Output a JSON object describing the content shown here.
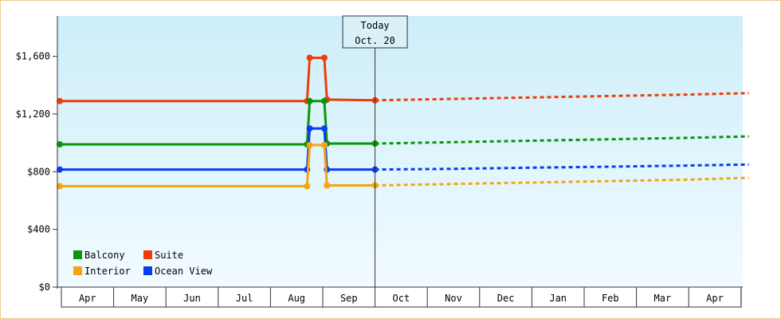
{
  "chart_data": {
    "type": "line",
    "y_ticks": [
      "$0",
      "$400",
      "$800",
      "$1,200",
      "$1,600"
    ],
    "y_tick_values": [
      0,
      400,
      800,
      1200,
      1600
    ],
    "ylim": [
      0,
      1880
    ],
    "months": [
      "Apr",
      "May",
      "Jun",
      "Jul",
      "Aug",
      "Sep",
      "Oct",
      "Nov",
      "Dec",
      "Jan",
      "Feb",
      "Mar",
      "Apr"
    ],
    "x_range_months": [
      0,
      13.15
    ],
    "today_marker": {
      "line1": "Today",
      "line2": "Oct. 20",
      "x": 6.0
    },
    "grid": false,
    "legend": "bottom-left",
    "colors": {
      "Balcony": "#0a960a",
      "Suite": "#f03c0a",
      "Interior": "#f5a50f",
      "Ocean View": "#0a3cf0"
    },
    "series": [
      {
        "name": "Suite",
        "actual": [
          [
            -0.03,
            1290
          ],
          [
            4.7,
            1290
          ],
          [
            4.75,
            1590
          ],
          [
            5.03,
            1590
          ],
          [
            5.08,
            1300
          ],
          [
            6.0,
            1295
          ]
        ],
        "forecast": [
          [
            6.0,
            1295
          ],
          [
            7.5,
            1305
          ],
          [
            9.0,
            1315
          ],
          [
            10.5,
            1325
          ],
          [
            12.0,
            1335
          ],
          [
            13.15,
            1345
          ]
        ]
      },
      {
        "name": "Balcony",
        "actual": [
          [
            -0.03,
            990
          ],
          [
            4.7,
            990
          ],
          [
            4.75,
            1290
          ],
          [
            5.03,
            1290
          ],
          [
            5.08,
            995
          ],
          [
            6.0,
            995
          ]
        ],
        "forecast": [
          [
            6.0,
            995
          ],
          [
            7.5,
            1005
          ],
          [
            9.0,
            1015
          ],
          [
            10.5,
            1025
          ],
          [
            12.0,
            1035
          ],
          [
            13.15,
            1045
          ]
        ]
      },
      {
        "name": "Ocean View",
        "actual": [
          [
            -0.03,
            815
          ],
          [
            4.7,
            815
          ],
          [
            4.75,
            1100
          ],
          [
            5.03,
            1100
          ],
          [
            5.08,
            815
          ],
          [
            6.0,
            815
          ]
        ],
        "forecast": [
          [
            6.0,
            815
          ],
          [
            7.5,
            820
          ],
          [
            9.0,
            828
          ],
          [
            10.5,
            835
          ],
          [
            12.0,
            843
          ],
          [
            13.15,
            850
          ]
        ]
      },
      {
        "name": "Interior",
        "actual": [
          [
            -0.03,
            700
          ],
          [
            4.7,
            700
          ],
          [
            4.75,
            985
          ],
          [
            5.03,
            985
          ],
          [
            5.08,
            705
          ],
          [
            6.0,
            705
          ]
        ],
        "forecast": [
          [
            6.0,
            705
          ],
          [
            7.5,
            715
          ],
          [
            9.0,
            725
          ],
          [
            10.5,
            735
          ],
          [
            12.0,
            745
          ],
          [
            13.15,
            758
          ]
        ]
      }
    ],
    "legend_items": [
      "Balcony",
      "Suite",
      "Interior",
      "Ocean View"
    ]
  }
}
